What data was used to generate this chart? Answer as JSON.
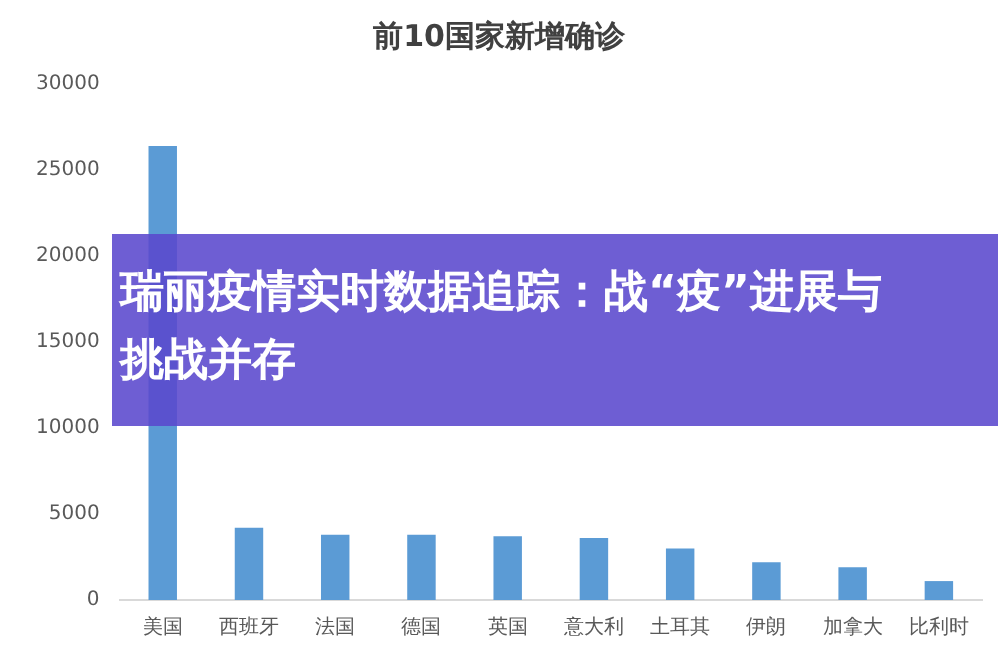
{
  "chart_data": {
    "type": "bar",
    "title": "前10国家新增确诊",
    "subtitle": "瑞丽疫情实时数据追踪：战“疫”进展与挑战并存",
    "categories": [
      "美国",
      "西班牙",
      "法国",
      "德国",
      "英国",
      "意大利",
      "土耳其",
      "伊朗",
      "加拿大",
      "比利时"
    ],
    "values": [
      26400,
      4200,
      3800,
      3800,
      3700,
      3600,
      3000,
      2200,
      1900,
      1100
    ],
    "color": "#5b9bd5",
    "ylim": [
      0,
      30000
    ],
    "yticks": [
      0,
      5000,
      10000,
      15000,
      20000,
      25000,
      30000
    ],
    "grid": false,
    "legend": false
  }
}
